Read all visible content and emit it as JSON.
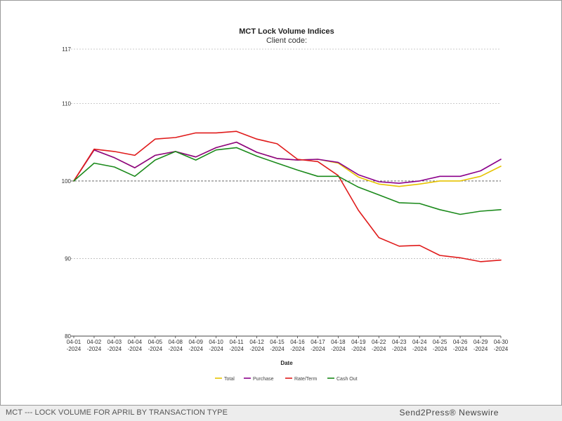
{
  "chart_data": {
    "type": "line",
    "title": "MCT Lock Volume Indices",
    "subtitle": "Client code:",
    "xlabel": "Date",
    "ylabel": "",
    "ylim": [
      80,
      117
    ],
    "yticks": [
      80,
      90,
      100,
      110,
      117
    ],
    "grid": true,
    "legend_position": "bottom",
    "categories": [
      "04-01-2024",
      "04-02-2024",
      "04-03-2024",
      "04-04-2024",
      "04-05-2024",
      "04-08-2024",
      "04-09-2024",
      "04-10-2024",
      "04-11-2024",
      "04-12-2024",
      "04-15-2024",
      "04-16-2024",
      "04-17-2024",
      "04-18-2024",
      "04-19-2024",
      "04-22-2024",
      "04-23-2024",
      "04-24-2024",
      "04-25-2024",
      "04-26-2024",
      "04-29-2024",
      "04-30-2024"
    ],
    "category_labels": [
      [
        "04-01",
        "-2024"
      ],
      [
        "04-02",
        "-2024"
      ],
      [
        "04-03",
        "-2024"
      ],
      [
        "04-04",
        "-2024"
      ],
      [
        "04-05",
        "-2024"
      ],
      [
        "04-08",
        "-2024"
      ],
      [
        "04-09",
        "-2024"
      ],
      [
        "04-10",
        "-2024"
      ],
      [
        "04-11",
        "-2024"
      ],
      [
        "04-12",
        "-2024"
      ],
      [
        "04-15",
        "-2024"
      ],
      [
        "04-16",
        "-2024"
      ],
      [
        "04-17",
        "-2024"
      ],
      [
        "04-18",
        "-2024"
      ],
      [
        "04-19",
        "-2024"
      ],
      [
        "04-22",
        "-2024"
      ],
      [
        "04-23",
        "-2024"
      ],
      [
        "04-24",
        "-2024"
      ],
      [
        "04-25",
        "-2024"
      ],
      [
        "04-26",
        "-2024"
      ],
      [
        "04-29",
        "-2024"
      ],
      [
        "04-30",
        "-2024"
      ]
    ],
    "series": [
      {
        "name": "Total",
        "color": "#e6c300",
        "values": [
          100,
          104.0,
          103.0,
          101.7,
          103.3,
          103.8,
          103.1,
          104.3,
          105.0,
          103.7,
          102.9,
          102.7,
          102.8,
          102.3,
          100.5,
          99.6,
          99.3,
          99.6,
          100.0,
          100.0,
          100.6,
          101.9
        ]
      },
      {
        "name": "Purchase",
        "color": "#8b008b",
        "values": [
          100,
          104.0,
          103.0,
          101.7,
          103.3,
          103.8,
          103.1,
          104.3,
          105.0,
          103.7,
          102.9,
          102.7,
          102.8,
          102.4,
          100.8,
          99.9,
          99.7,
          100.0,
          100.6,
          100.6,
          101.3,
          102.8
        ]
      },
      {
        "name": "Rate/Term",
        "color": "#e01b1b",
        "values": [
          100,
          104.1,
          103.8,
          103.3,
          105.4,
          105.6,
          106.2,
          106.2,
          106.4,
          105.4,
          104.8,
          102.8,
          102.5,
          100.7,
          96.2,
          92.7,
          91.6,
          91.7,
          90.4,
          90.1,
          89.6,
          89.8
        ]
      },
      {
        "name": "Cash Out",
        "color": "#1b8a1b",
        "values": [
          100,
          102.3,
          101.8,
          100.6,
          102.7,
          103.8,
          102.7,
          104.0,
          104.3,
          103.2,
          102.3,
          101.4,
          100.6,
          100.6,
          99.2,
          98.2,
          97.2,
          97.1,
          96.3,
          95.7,
          96.1,
          96.3
        ]
      }
    ]
  },
  "footer": {
    "caption": "MCT --- LOCK VOLUME FOR APRIL BY TRANSACTION TYPE",
    "brand": "Send2Press® Newswire"
  }
}
